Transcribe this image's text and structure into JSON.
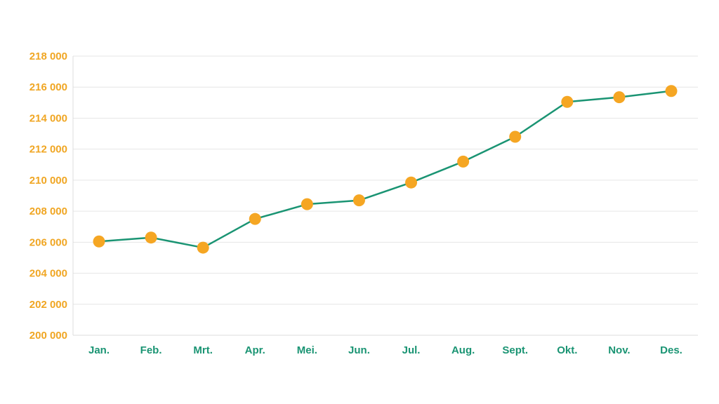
{
  "chart_data": {
    "type": "line",
    "title": "",
    "xlabel": "",
    "ylabel": "",
    "categories": [
      "Jan.",
      "Feb.",
      "Mrt.",
      "Apr.",
      "Mei.",
      "Jun.",
      "Jul.",
      "Aug.",
      "Sept.",
      "Okt.",
      "Nov.",
      "Des."
    ],
    "series": [
      {
        "values": [
          206050,
          206300,
          205650,
          207500,
          208450,
          208700,
          209850,
          211200,
          212800,
          215050,
          215350,
          215750
        ]
      }
    ],
    "ylim": [
      200000,
      218000
    ],
    "yticks": [
      200000,
      202000,
      204000,
      206000,
      208000,
      210000,
      212000,
      214000,
      216000,
      218000
    ],
    "ytick_labels": [
      "200 000",
      "202 000",
      "204 000",
      "206 000",
      "208 000",
      "210 000",
      "212 000",
      "214 000",
      "216 000",
      "218 000"
    ],
    "grid": "horizontal",
    "legend": "none",
    "colors": {
      "line": "#1a9473",
      "marker": "#f5a623",
      "ytick_text": "#f0a623",
      "xtick_text": "#1a9473",
      "grid": "#e6e6e6",
      "axis": "#dcdcdc"
    }
  }
}
